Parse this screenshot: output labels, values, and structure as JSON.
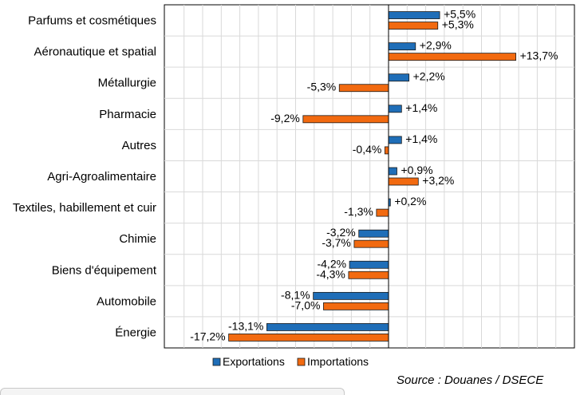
{
  "chart_data": {
    "type": "bar",
    "orientation": "horizontal",
    "categories": [
      "Parfums et cosmétiques",
      "Aéronautique et spatial",
      "Métallurgie",
      "Pharmacie",
      "Autres",
      "Agri-Agroalimentaire",
      "Textiles, habillement et cuir",
      "Chimie",
      "Biens d'équipement",
      "Automobile",
      "Énergie"
    ],
    "series": [
      {
        "name": "Exportations",
        "color": "#1F6EB8",
        "values": [
          5.5,
          2.9,
          2.2,
          1.4,
          1.4,
          0.9,
          0.2,
          -3.2,
          -4.2,
          -8.1,
          -13.1
        ],
        "labels": [
          "+5,5%",
          "+2,9%",
          "+2,2%",
          "+1,4%",
          "+1,4%",
          "+0,9%",
          "+0,2%",
          "-3,2%",
          "-4,2%",
          "-8,1%",
          "-13,1%"
        ]
      },
      {
        "name": "Importations",
        "color": "#F26A10",
        "values": [
          5.3,
          13.7,
          -5.3,
          -9.2,
          -0.4,
          3.2,
          -1.3,
          -3.7,
          -4.3,
          -7.0,
          -17.2
        ],
        "labels": [
          "+5,3%",
          "+13,7%",
          "-5,3%",
          "-9,2%",
          "-0,4%",
          "+3,2%",
          "-1,3%",
          "-3,7%",
          "-4,3%",
          "-7,0%",
          "-17,2%"
        ]
      }
    ],
    "xlim": [
      -24,
      20
    ],
    "grid": true,
    "legend": "bottom",
    "source": "Source : Douanes / DSECE"
  }
}
